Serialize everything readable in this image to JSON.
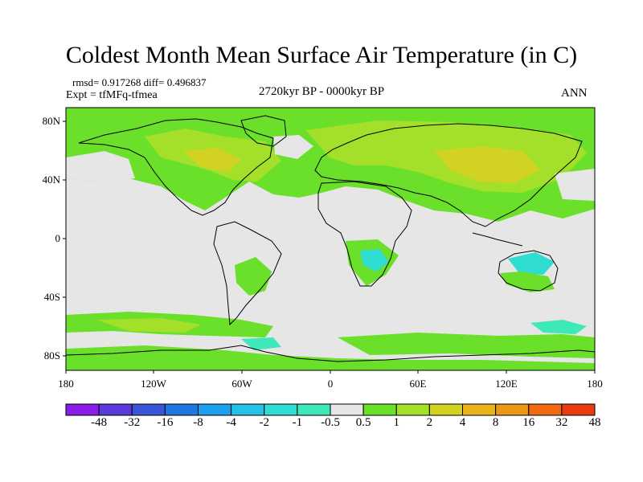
{
  "title": "Coldest Month Mean Surface Air Temperature (in C)",
  "stats": "rmsd= 0.917268 diff= 0.496837",
  "experiment": "Expt = tfMFq-tfmea",
  "period": "2720kyr BP - 0000kyr BP",
  "season": "ANN",
  "lat_labels": [
    "80N",
    "40N",
    "0",
    "40S",
    "80S"
  ],
  "lon_labels": [
    "180",
    "120W",
    "60W",
    "0",
    "60E",
    "120E",
    "180"
  ],
  "colorbar": {
    "labels": [
      "-48",
      "-32",
      "-16",
      "-8",
      "-4",
      "-2",
      "-1",
      "-0.5",
      "0.5",
      "1",
      "2",
      "4",
      "8",
      "16",
      "32",
      "48"
    ],
    "colors": [
      "#8a1ee6",
      "#5a3ad8",
      "#3a56d6",
      "#1e78e0",
      "#1ea0ee",
      "#28c0e6",
      "#2edcd2",
      "#3ee8b8",
      "#e6e6e6",
      "#6ae02a",
      "#a4e02a",
      "#d2d222",
      "#e6b41a",
      "#ec9618",
      "#f06a14",
      "#e83c10"
    ]
  },
  "map_colors": {
    "ocean_neutral": "#e6e6e6",
    "warm_1": "#6ae02a",
    "warm_2": "#a4e02a",
    "warm_4": "#d2d222",
    "cool_1": "#3ee8b8",
    "cool_2": "#2edcd2"
  }
}
